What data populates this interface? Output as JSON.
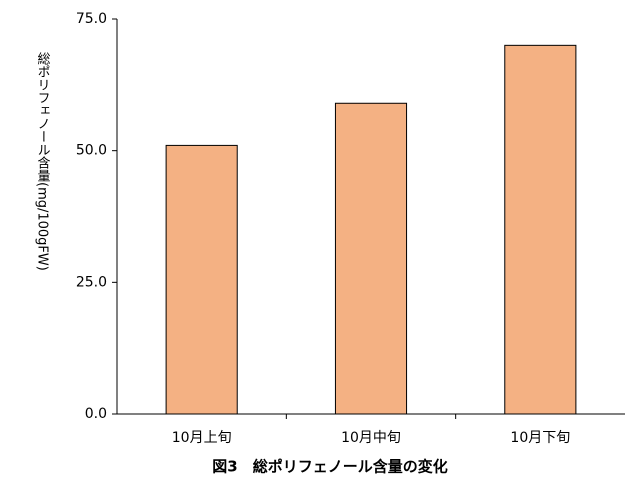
{
  "chart_data": {
    "type": "bar",
    "title": "図3　総ポリフェノール含量の変化",
    "y_label": "総ポリフェノール含量(mg/100gFW)",
    "categories": [
      "10月上旬",
      "10月中旬",
      "10月下旬"
    ],
    "values": [
      51,
      59,
      70
    ],
    "color": "#f4b183",
    "ylim": [
      0,
      75
    ],
    "yticks": [
      {
        "value": 0,
        "label": "0.0"
      },
      {
        "value": 25,
        "label": "25.0"
      },
      {
        "value": 50,
        "label": "50.0"
      },
      {
        "value": 75,
        "label": "75.0"
      }
    ],
    "grid": false
  }
}
